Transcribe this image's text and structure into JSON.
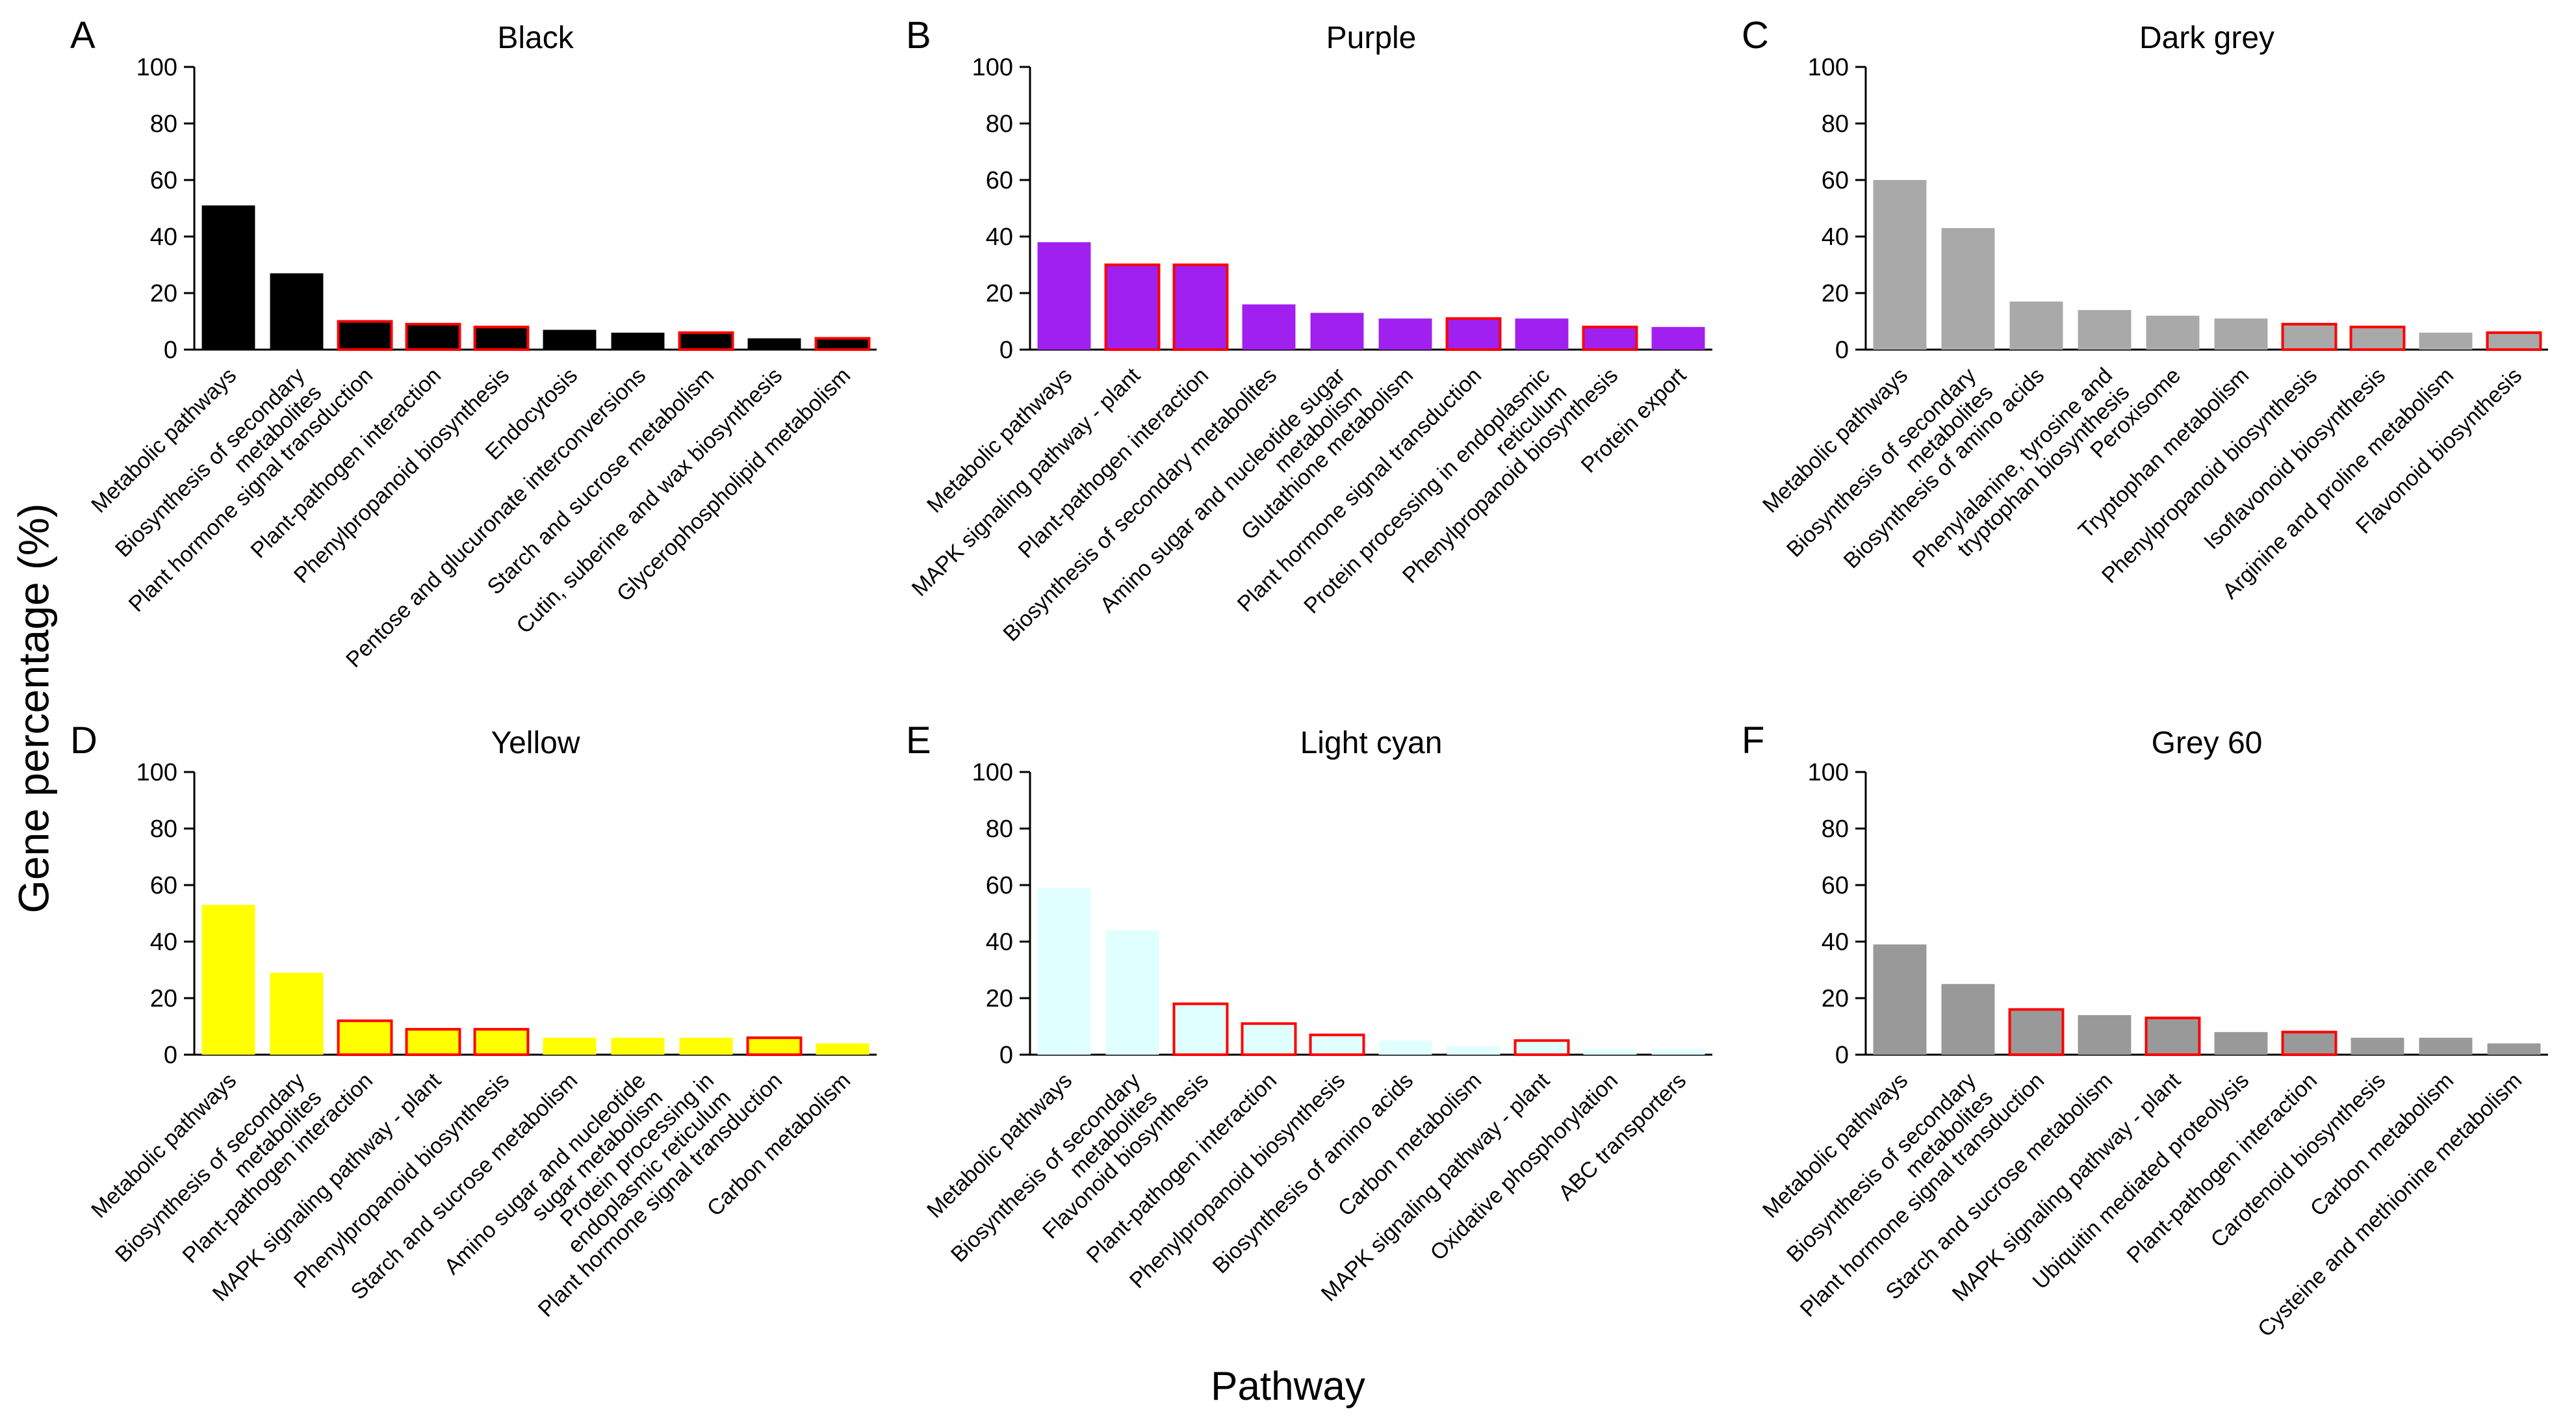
{
  "figure": {
    "y_axis_label": "Gene percentage (%)",
    "x_axis_label": "Pathway"
  },
  "chart_data": [
    {
      "type": "bar",
      "panel": "A",
      "title": "Black",
      "bar_color": "#000000",
      "highlight_color": "#ff0000",
      "ylim": [
        0,
        100
      ],
      "yticks": [
        0,
        20,
        40,
        60,
        80,
        100
      ],
      "categories": [
        "Metabolic pathways",
        "Biosynthesis of secondary\nmetabolites",
        "Plant hormone signal transduction",
        "Plant-pathogen interaction",
        "Phenylpropanoid biosynthesis",
        "Endocytosis",
        "Pentose and glucuronate interconversions",
        "Starch and sucrose metabolism",
        "Cutin, suberine and wax biosynthesis",
        "Glycerophospholipid metabolism"
      ],
      "values": [
        51,
        27,
        10,
        9,
        8,
        7,
        6,
        6,
        4,
        4
      ],
      "highlighted": [
        false,
        false,
        true,
        true,
        true,
        false,
        false,
        true,
        false,
        true
      ]
    },
    {
      "type": "bar",
      "panel": "B",
      "title": "Purple",
      "bar_color": "#a020f0",
      "highlight_color": "#ff0000",
      "ylim": [
        0,
        100
      ],
      "yticks": [
        0,
        20,
        40,
        60,
        80,
        100
      ],
      "categories": [
        "Metabolic pathways",
        "MAPK signaling pathway - plant",
        "Plant-pathogen interaction",
        "Biosynthesis of secondary metabolites",
        "Amino sugar and nucleotide sugar\nmetabolism",
        "Glutathione metabolism",
        "Plant hormone signal transduction",
        "Protein processing in endoplasmic\nreticulum",
        "Phenylpropanoid biosynthesis",
        "Protein export"
      ],
      "values": [
        38,
        30,
        30,
        16,
        13,
        11,
        11,
        11,
        8,
        8
      ],
      "highlighted": [
        false,
        true,
        true,
        false,
        false,
        false,
        true,
        false,
        true,
        false
      ]
    },
    {
      "type": "bar",
      "panel": "C",
      "title": "Dark grey",
      "bar_color": "#a9a9a9",
      "highlight_color": "#ff0000",
      "ylim": [
        0,
        100
      ],
      "yticks": [
        0,
        20,
        40,
        60,
        80,
        100
      ],
      "categories": [
        "Metabolic pathways",
        "Biosynthesis of secondary\nmetabolites",
        "Biosynthesis of amino acids",
        "Phenylalanine, tyrosine and\ntryptophan biosynthesis",
        "Peroxisome",
        "Tryptophan metabolism",
        "Phenylpropanoid biosynthesis",
        "Isoflavonoid biosynthesis",
        "Arginine and proline metabolism",
        "Flavonoid biosynthesis"
      ],
      "values": [
        60,
        43,
        17,
        14,
        12,
        11,
        9,
        8,
        6,
        6
      ],
      "highlighted": [
        false,
        false,
        false,
        false,
        false,
        false,
        true,
        true,
        false,
        true
      ]
    },
    {
      "type": "bar",
      "panel": "D",
      "title": "Yellow",
      "bar_color": "#ffff00",
      "highlight_color": "#ff0000",
      "ylim": [
        0,
        100
      ],
      "yticks": [
        0,
        20,
        40,
        60,
        80,
        100
      ],
      "categories": [
        "Metabolic pathways",
        "Biosynthesis of secondary\nmetabolites",
        "Plant-pathogen interaction",
        "MAPK signaling pathway - plant",
        "Phenylpropanoid biosynthesis",
        "Starch and sucrose metabolism",
        "Amino sugar and nucleotide\nsugar metabolism",
        "Protein processing in\nendoplasmic reticulum",
        "Plant hormone signal transduction",
        "Carbon metabolism"
      ],
      "values": [
        53,
        29,
        12,
        9,
        9,
        6,
        6,
        6,
        6,
        4
      ],
      "highlighted": [
        false,
        false,
        true,
        true,
        true,
        false,
        false,
        false,
        true,
        false
      ]
    },
    {
      "type": "bar",
      "panel": "E",
      "title": "Light cyan",
      "bar_color": "#e0ffff",
      "highlight_color": "#ff0000",
      "ylim": [
        0,
        100
      ],
      "yticks": [
        0,
        20,
        40,
        60,
        80,
        100
      ],
      "categories": [
        "Metabolic pathways",
        "Biosynthesis of secondary\nmetabolites",
        "Flavonoid biosynthesis",
        "Plant-pathogen interaction",
        "Phenylpropanoid biosynthesis",
        "Biosynthesis of amino acids",
        "Carbon metabolism",
        "MAPK signaling pathway - plant",
        "Oxidative phosphorylation",
        "ABC transporters"
      ],
      "values": [
        59,
        44,
        18,
        11,
        7,
        5,
        3,
        5,
        2,
        2
      ],
      "highlighted": [
        false,
        false,
        true,
        true,
        true,
        false,
        false,
        true,
        false,
        false
      ]
    },
    {
      "type": "bar",
      "panel": "F",
      "title": "Grey 60",
      "bar_color": "#999999",
      "highlight_color": "#ff0000",
      "ylim": [
        0,
        100
      ],
      "yticks": [
        0,
        20,
        40,
        60,
        80,
        100
      ],
      "categories": [
        "Metabolic pathways",
        "Biosynthesis of secondary\nmetabolites",
        "Plant hormone signal transduction",
        "Starch and sucrose metabolism",
        "MAPK signaling pathway - plant",
        "Ubiquitin mediated proteolysis",
        "Plant-pathogen interaction",
        "Carotenoid biosynthesis",
        "Carbon metabolism",
        "Cysteine and methionine metabolism"
      ],
      "values": [
        39,
        25,
        16,
        14,
        13,
        8,
        8,
        6,
        6,
        4
      ],
      "highlighted": [
        false,
        false,
        true,
        false,
        true,
        false,
        true,
        false,
        false,
        false
      ]
    }
  ]
}
